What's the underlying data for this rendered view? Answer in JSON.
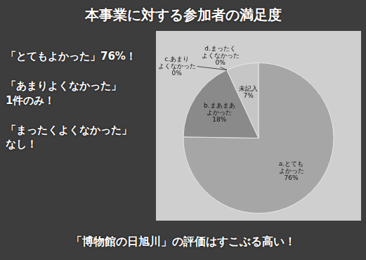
{
  "chart_data": {
    "type": "pie",
    "title": "本事業に対する参加者の満足度",
    "categories": [
      "a.とてもよかった",
      "b.まあまあよかった",
      "c.あまりよくなかった",
      "d.まったくよくなかった",
      "未記入"
    ],
    "values": [
      76,
      18,
      0,
      0,
      7
    ],
    "value_labels": [
      "76%",
      "18%",
      "0%",
      "0%",
      "7%"
    ],
    "colors": [
      "#a6a6a6",
      "#8a8a8a",
      "#9a9a9a",
      "#b2b2b2",
      "#c6c6c6"
    ],
    "data_labels": true,
    "annotations": [
      "「とてもよかった」76%！",
      "「あまりよくなかった」1件のみ！",
      "「まったくよくなかった」なし！",
      "「博物館の日旭川」の評価はすこぶる高い！"
    ]
  }
}
